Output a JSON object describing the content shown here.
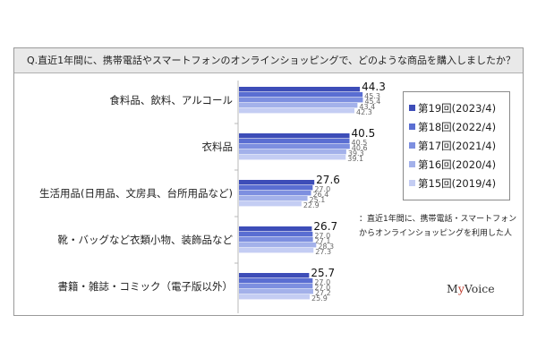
{
  "title": "Q.直近1年間に、携帯電話やスマートフォンのオンラインショッピングで、どのような商品を購入しましたか？",
  "note": {
    "line1": "：直近1年間に、携帯電話・スマートフォン",
    "line2": "からオンラインショッピングを利用した人"
  },
  "logo": {
    "pre": "M",
    "accent": "y",
    "post": "Voice"
  },
  "colors": [
    "#3d4db8",
    "#5a6ed2",
    "#7d8fe0",
    "#a3b1ea",
    "#c4cdf3"
  ],
  "chart_data": {
    "type": "bar",
    "orientation": "horizontal",
    "categories": [
      "食料品、飲料、アルコール",
      "衣料品",
      "生活用品(日用品、文房具、台所用品など)",
      "靴・バッグなど衣類小物、装飾品など",
      "書籍・雑誌・コミック（電子版以外）"
    ],
    "series": [
      {
        "name": "第19回(2023/4)",
        "values": [
          44.3,
          40.5,
          27.6,
          26.7,
          25.7
        ]
      },
      {
        "name": "第18回(2022/4)",
        "values": [
          45.3,
          40.5,
          27.0,
          27.0,
          27.0
        ]
      },
      {
        "name": "第17回(2021/4)",
        "values": [
          45.4,
          40.6,
          26.4,
          27.1,
          27.0
        ]
      },
      {
        "name": "第16回(2020/4)",
        "values": [
          43.4,
          39.3,
          25.1,
          28.3,
          27.2
        ]
      },
      {
        "name": "第15回(2019/4)",
        "values": [
          42.3,
          39.1,
          22.9,
          27.3,
          25.9
        ]
      }
    ],
    "legend_position": "right",
    "grid": false
  }
}
